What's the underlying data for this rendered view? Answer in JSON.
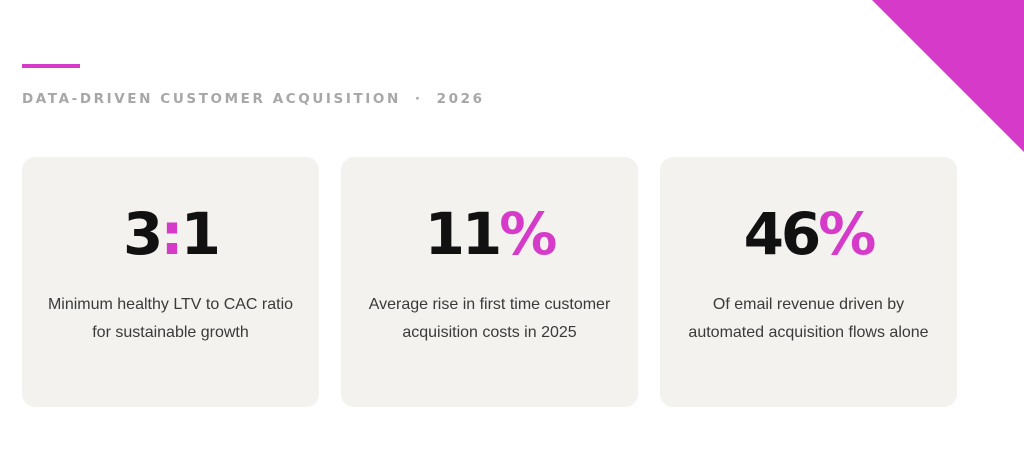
{
  "theme": {
    "accent": "#d63ac8",
    "card_bg": "#f3f2ef",
    "eyebrow_color": "#a7a7a7",
    "stat_color": "#111111"
  },
  "header": {
    "eyebrow_main": "DATA-DRIVEN CUSTOMER ACQUISITION",
    "eyebrow_separator": "·",
    "eyebrow_year": "2026"
  },
  "cards": [
    {
      "stat_parts": [
        "3",
        ":",
        "1"
      ],
      "description": "Minimum healthy LTV to CAC ratio for sustainable growth"
    },
    {
      "stat_parts": [
        "11",
        "%"
      ],
      "description": "Average rise in first time customer acquisition costs in 2025"
    },
    {
      "stat_parts": [
        "46",
        "%"
      ],
      "description": "Of email revenue driven by automated acquisition flows alone"
    }
  ]
}
